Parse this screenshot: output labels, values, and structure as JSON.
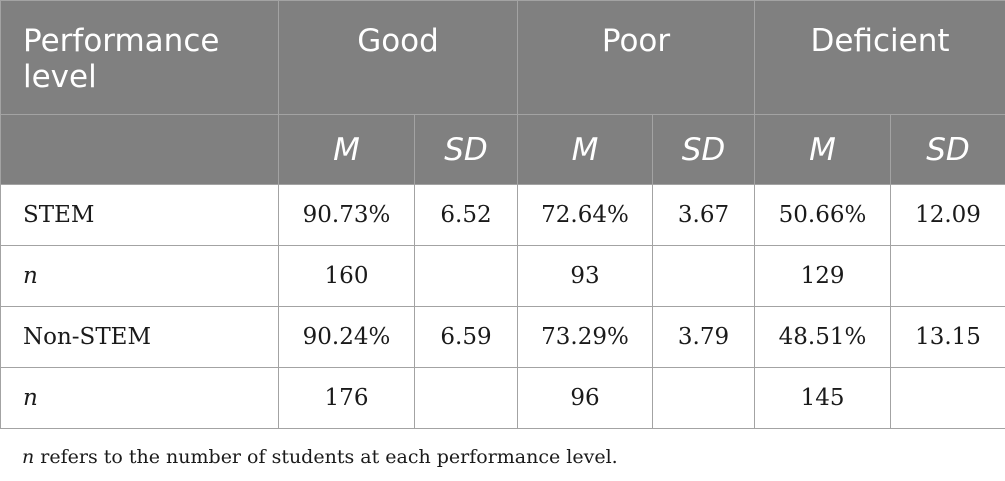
{
  "table": {
    "header": {
      "label_col": "Performance level",
      "groups": [
        "Good",
        "Poor",
        "Deficient"
      ],
      "subheaders": [
        "M",
        "SD",
        "M",
        "SD",
        "M",
        "SD"
      ]
    },
    "rows": [
      {
        "label": "STEM",
        "cells": [
          "90.73%",
          "6.52",
          "72.64%",
          "3.67",
          "50.66%",
          "12.09"
        ]
      },
      {
        "label": "n",
        "cells": [
          "160",
          "",
          "93",
          "",
          "129",
          ""
        ]
      },
      {
        "label": "Non-STEM",
        "cells": [
          "90.24%",
          "6.59",
          "73.29%",
          "3.79",
          "48.51%",
          "13.15"
        ]
      },
      {
        "label": "n",
        "cells": [
          "176",
          "",
          "96",
          "",
          "145",
          ""
        ]
      }
    ]
  },
  "footnote": {
    "var": "n",
    "text": " refers to the number of students at each performance level."
  }
}
